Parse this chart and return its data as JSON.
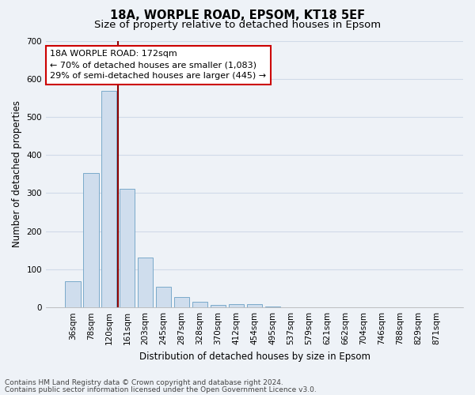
{
  "title1": "18A, WORPLE ROAD, EPSOM, KT18 5EF",
  "title2": "Size of property relative to detached houses in Epsom",
  "xlabel": "Distribution of detached houses by size in Epsom",
  "ylabel": "Number of detached properties",
  "bar_values": [
    68,
    353,
    568,
    311,
    130,
    55,
    27,
    14,
    6,
    8,
    8,
    3,
    0,
    0,
    0,
    0,
    0,
    0,
    0,
    0,
    0
  ],
  "categories": [
    "36sqm",
    "78sqm",
    "120sqm",
    "161sqm",
    "203sqm",
    "245sqm",
    "287sqm",
    "328sqm",
    "370sqm",
    "412sqm",
    "454sqm",
    "495sqm",
    "537sqm",
    "579sqm",
    "621sqm",
    "662sqm",
    "704sqm",
    "746sqm",
    "788sqm",
    "829sqm",
    "871sqm"
  ],
  "bar_color": "#cfdded",
  "bar_edgecolor": "#7aaaca",
  "vline_color": "#8b0000",
  "vline_x": 2.5,
  "annotation_text": "18A WORPLE ROAD: 172sqm\n← 70% of detached houses are smaller (1,083)\n29% of semi-detached houses are larger (445) →",
  "annotation_box_facecolor": "white",
  "annotation_box_edgecolor": "#cc0000",
  "ylim": [
    0,
    700
  ],
  "yticks": [
    0,
    100,
    200,
    300,
    400,
    500,
    600,
    700
  ],
  "footer1": "Contains HM Land Registry data © Crown copyright and database right 2024.",
  "footer2": "Contains public sector information licensed under the Open Government Licence v3.0.",
  "bg_color": "#eef2f7",
  "grid_color": "#d0dae8",
  "title_fontsize": 10.5,
  "subtitle_fontsize": 9.5,
  "axis_label_fontsize": 8.5,
  "tick_fontsize": 7.5,
  "footer_fontsize": 6.5
}
